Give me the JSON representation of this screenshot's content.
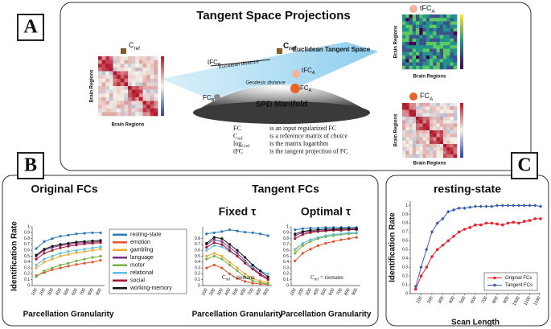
{
  "panel_a": {
    "label": "A",
    "title": "Tangent Space Projections",
    "labels": [
      {
        "base": "C",
        "sub": "ref"
      },
      {
        "base": "C",
        "sub": "ref"
      },
      "Euclidean Tangent Space",
      {
        "base": "tFC",
        "sub": "B"
      },
      "Euclidean distance",
      "Geodesic distance",
      {
        "base": "FC",
        "sub": "A"
      },
      {
        "base": "tFC",
        "sub": "A"
      },
      {
        "base": "FC",
        "sub": "B"
      },
      "SPD Manifold",
      {
        "base": "tFC",
        "sub": "A"
      },
      {
        "base": "FC",
        "sub": "A"
      }
    ],
    "heatmap_axis_labels": [
      "Brain Regions",
      "Brain Regions",
      "Brain Regions",
      "Brain Regions",
      "Brain Regions",
      "Brain Regions"
    ],
    "definitions": [
      {
        "term": "FC",
        "text": "is an input regularized FC"
      },
      {
        "term": {
          "base": "C",
          "sub": "ref"
        },
        "text": "is a reference matrix of choice"
      },
      {
        "term": {
          "base": "log",
          "sub": "Cref"
        },
        "text": "is the matrix logarithm"
      },
      {
        "term": "tFC",
        "text": "is the tangent projection of FC"
      }
    ]
  },
  "panel_b": {
    "label": "B",
    "heading": "Tangent FCs"
  },
  "panel_c": {
    "label": "C"
  },
  "chart_data": [
    {
      "type": "line",
      "title": "Original FCs",
      "xlabel": "Parcellation Granularity",
      "ylabel": "Identification Rate",
      "categories": [
        100,
        200,
        300,
        400,
        500,
        600,
        700,
        800,
        900
      ],
      "ylim": [
        0,
        1
      ],
      "yticks": [
        0,
        0.1,
        0.2,
        0.3,
        0.4,
        0.5,
        0.6,
        0.7,
        0.8,
        0.9,
        1
      ],
      "legend": "right",
      "series": [
        {
          "name": "resting-state",
          "color": "#2a78b8",
          "values": [
            0.63,
            0.75,
            0.8,
            0.84,
            0.86,
            0.88,
            0.89,
            0.9,
            0.9
          ]
        },
        {
          "name": "emotion",
          "color": "#e2542a",
          "values": [
            0.17,
            0.22,
            0.27,
            0.3,
            0.33,
            0.36,
            0.38,
            0.4,
            0.43
          ]
        },
        {
          "name": "gambling",
          "color": "#f0a830",
          "values": [
            0.3,
            0.4,
            0.45,
            0.5,
            0.53,
            0.56,
            0.58,
            0.6,
            0.62
          ]
        },
        {
          "name": "language",
          "color": "#7a2f8f",
          "values": [
            0.5,
            0.6,
            0.65,
            0.68,
            0.7,
            0.72,
            0.73,
            0.74,
            0.75
          ]
        },
        {
          "name": "motor",
          "color": "#77b043",
          "values": [
            0.15,
            0.25,
            0.3,
            0.35,
            0.38,
            0.42,
            0.45,
            0.48,
            0.5
          ]
        },
        {
          "name": "relational",
          "color": "#5cc0e8",
          "values": [
            0.35,
            0.45,
            0.5,
            0.55,
            0.58,
            0.6,
            0.62,
            0.64,
            0.66
          ]
        },
        {
          "name": "social",
          "color": "#a2142f",
          "values": [
            0.45,
            0.55,
            0.6,
            0.64,
            0.67,
            0.69,
            0.71,
            0.72,
            0.73
          ]
        },
        {
          "name": "working-memory",
          "color": "#111111",
          "values": [
            0.52,
            0.62,
            0.67,
            0.7,
            0.72,
            0.74,
            0.75,
            0.76,
            0.77
          ]
        }
      ]
    },
    {
      "type": "line",
      "title": "Fixed τ",
      "title_color": "#e8232a",
      "xlabel": "Parcellation Granularity",
      "categories": [
        100,
        200,
        300,
        400,
        500,
        600,
        700,
        800,
        900
      ],
      "ylim": [
        0,
        1
      ],
      "yticks": [
        0,
        0.1,
        0.2,
        0.3,
        0.4,
        0.5,
        0.6,
        0.7,
        0.8
      ],
      "annotation": {
        "base": "C",
        "sub": "ref",
        "rest": "= riemann"
      },
      "annotation_color": "#c8642a",
      "series": [
        {
          "color": "#2a78b8",
          "values": [
            0.88,
            0.9,
            0.92,
            0.95,
            0.93,
            0.91,
            0.9,
            0.88,
            0.85
          ]
        },
        {
          "color": "#e2542a",
          "values": [
            0.3,
            0.35,
            0.3,
            0.2,
            0.12,
            0.07,
            0.04,
            0.03,
            0.02
          ]
        },
        {
          "color": "#f0a830",
          "values": [
            0.5,
            0.55,
            0.5,
            0.4,
            0.3,
            0.2,
            0.12,
            0.08,
            0.05
          ]
        },
        {
          "color": "#7a2f8f",
          "values": [
            0.7,
            0.78,
            0.75,
            0.65,
            0.55,
            0.42,
            0.3,
            0.2,
            0.12
          ]
        },
        {
          "color": "#77b043",
          "values": [
            0.45,
            0.5,
            0.45,
            0.35,
            0.25,
            0.15,
            0.08,
            0.05,
            0.03
          ]
        },
        {
          "color": "#5cc0e8",
          "values": [
            0.6,
            0.68,
            0.66,
            0.58,
            0.5,
            0.4,
            0.32,
            0.25,
            0.2
          ]
        },
        {
          "color": "#a2142f",
          "values": [
            0.65,
            0.73,
            0.7,
            0.6,
            0.5,
            0.38,
            0.28,
            0.18,
            0.1
          ]
        },
        {
          "color": "#111111",
          "values": [
            0.72,
            0.82,
            0.8,
            0.7,
            0.6,
            0.48,
            0.35,
            0.25,
            0.15
          ]
        }
      ]
    },
    {
      "type": "line",
      "title": "Optimal τ",
      "title_color": "#2a78b8",
      "xlabel": "Parcellation Granularity",
      "categories": [
        100,
        200,
        300,
        400,
        500,
        600,
        700,
        800,
        900
      ],
      "ylim": [
        0,
        1
      ],
      "yticks": [
        0,
        0.1,
        0.2,
        0.3,
        0.4,
        0.5,
        0.6,
        0.7,
        0.8,
        0.9,
        1
      ],
      "annotation": {
        "base": "C",
        "sub": "ref",
        "rest": "= riemann"
      },
      "annotation_color": "#c8642a",
      "series": [
        {
          "color": "#2a78b8",
          "values": [
            0.95,
            0.97,
            0.98,
            0.98,
            0.99,
            0.99,
            0.99,
            0.99,
            0.99
          ]
        },
        {
          "color": "#e2542a",
          "values": [
            0.42,
            0.55,
            0.62,
            0.68,
            0.72,
            0.75,
            0.78,
            0.8,
            0.82
          ]
        },
        {
          "color": "#f0a830",
          "values": [
            0.6,
            0.72,
            0.78,
            0.82,
            0.85,
            0.87,
            0.88,
            0.9,
            0.9
          ]
        },
        {
          "color": "#7a2f8f",
          "values": [
            0.85,
            0.9,
            0.92,
            0.93,
            0.94,
            0.95,
            0.95,
            0.95,
            0.96
          ]
        },
        {
          "color": "#77b043",
          "values": [
            0.55,
            0.68,
            0.75,
            0.8,
            0.83,
            0.85,
            0.87,
            0.88,
            0.89
          ]
        },
        {
          "color": "#5cc0e8",
          "values": [
            0.62,
            0.72,
            0.78,
            0.82,
            0.85,
            0.87,
            0.88,
            0.9,
            0.9
          ]
        },
        {
          "color": "#a2142f",
          "values": [
            0.8,
            0.87,
            0.9,
            0.92,
            0.93,
            0.94,
            0.94,
            0.95,
            0.95
          ]
        },
        {
          "color": "#111111",
          "values": [
            0.88,
            0.92,
            0.94,
            0.95,
            0.96,
            0.96,
            0.97,
            0.97,
            0.97
          ]
        }
      ]
    },
    {
      "type": "line",
      "title": "resting-state",
      "xlabel": "Scan Length",
      "ylabel": "Identification Rate",
      "x": [
        50,
        100,
        150,
        200,
        250,
        300,
        350,
        400,
        450,
        500,
        550,
        600,
        650,
        700,
        750,
        800,
        850,
        900,
        950,
        1000,
        1050,
        1100,
        1150,
        1200
      ],
      "xlim": [
        0,
        1200
      ],
      "xticks": [
        100,
        200,
        300,
        400,
        500,
        600,
        700,
        800,
        900,
        1000,
        1100,
        1190
      ],
      "ylim": [
        0,
        1.05
      ],
      "yticks": [
        0,
        0.1,
        0.2,
        0.3,
        0.4,
        0.5,
        0.6,
        0.7,
        0.8,
        0.9,
        1
      ],
      "legend": "lower right",
      "series": [
        {
          "name": "Original FCs",
          "color": "#e8232a",
          "marker": "circle",
          "values": [
            0.05,
            0.2,
            0.3,
            0.42,
            0.5,
            0.55,
            0.6,
            0.65,
            0.7,
            0.73,
            0.75,
            0.78,
            0.78,
            0.8,
            0.8,
            0.79,
            0.78,
            0.8,
            0.81,
            0.8,
            0.82,
            0.83,
            0.85,
            0.85
          ]
        },
        {
          "name": "Tangent FCs",
          "color": "#3a5fb0",
          "marker": "diamond",
          "values": [
            0.08,
            0.3,
            0.5,
            0.7,
            0.8,
            0.85,
            0.93,
            0.95,
            0.97,
            0.97,
            0.98,
            0.99,
            0.99,
            0.99,
            0.99,
            1,
            1,
            1,
            1,
            1,
            1,
            1,
            1,
            0.99
          ]
        }
      ]
    }
  ]
}
